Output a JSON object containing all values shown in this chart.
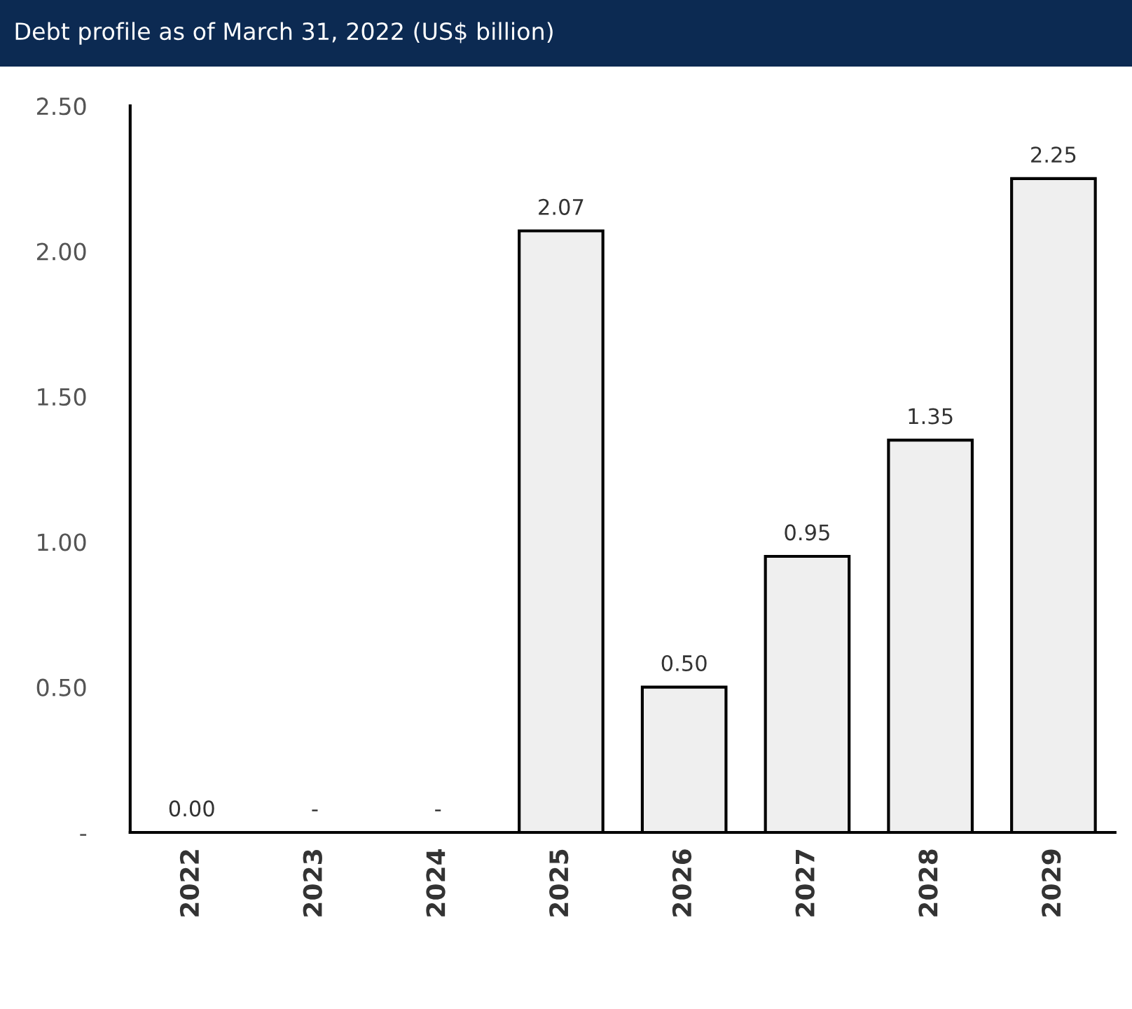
{
  "chart_data": {
    "type": "bar",
    "title": "Debt profile as of March 31, 2022 (US$ billion)",
    "categories": [
      "2022",
      "2023",
      "2024",
      "2025",
      "2026",
      "2027",
      "2028",
      "2029"
    ],
    "values": [
      0,
      0,
      0,
      2.07,
      0.5,
      0.95,
      1.35,
      2.25
    ],
    "value_labels": [
      "0.00",
      "-",
      "-",
      "2.07",
      "0.50",
      "0.95",
      "1.35",
      "2.25"
    ],
    "color": "#efefef",
    "ylim": [
      0,
      2.5
    ],
    "yticks": [
      {
        "value": 0,
        "label": "-"
      },
      {
        "value": 0.5,
        "label": "0.50"
      },
      {
        "value": 1.0,
        "label": "1.00"
      },
      {
        "value": 1.5,
        "label": "1.50"
      },
      {
        "value": 2.0,
        "label": "2.00"
      },
      {
        "value": 2.5,
        "label": "2.50"
      }
    ],
    "grid": false
  }
}
